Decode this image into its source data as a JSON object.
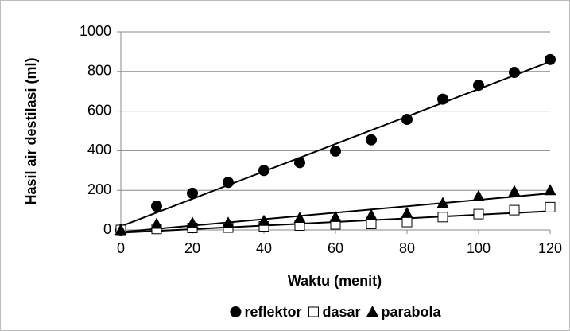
{
  "chart_data": {
    "type": "scatter",
    "x_label": "Waktu (menit)",
    "y_label": "Hasil air destilasi (ml)",
    "x": [
      0,
      10,
      20,
      30,
      40,
      50,
      60,
      70,
      80,
      90,
      100,
      110,
      120
    ],
    "series": [
      {
        "name": "reflektor",
        "color": "#000000",
        "marker": "circle",
        "values": [
          0,
          120,
          185,
          240,
          300,
          340,
          398,
          455,
          558,
          660,
          730,
          795,
          860
        ]
      },
      {
        "name": "dasar",
        "color": "#000000",
        "marker": "square",
        "values": [
          0,
          5,
          10,
          12,
          18,
          22,
          28,
          30,
          40,
          65,
          80,
          100,
          115
        ]
      },
      {
        "name": "parabola",
        "color": "#000000",
        "marker": "triangle",
        "values": [
          0,
          30,
          35,
          35,
          45,
          60,
          65,
          75,
          85,
          135,
          170,
          195,
          200
        ]
      }
    ],
    "trendline": "linear",
    "xlim": [
      0,
      120
    ],
    "xticks": [
      0,
      20,
      40,
      60,
      80,
      100,
      120
    ],
    "ylim": [
      0,
      1000
    ],
    "yticks": [
      0,
      200,
      400,
      600,
      800,
      1000
    ],
    "grid": true,
    "legend": "bottom"
  }
}
